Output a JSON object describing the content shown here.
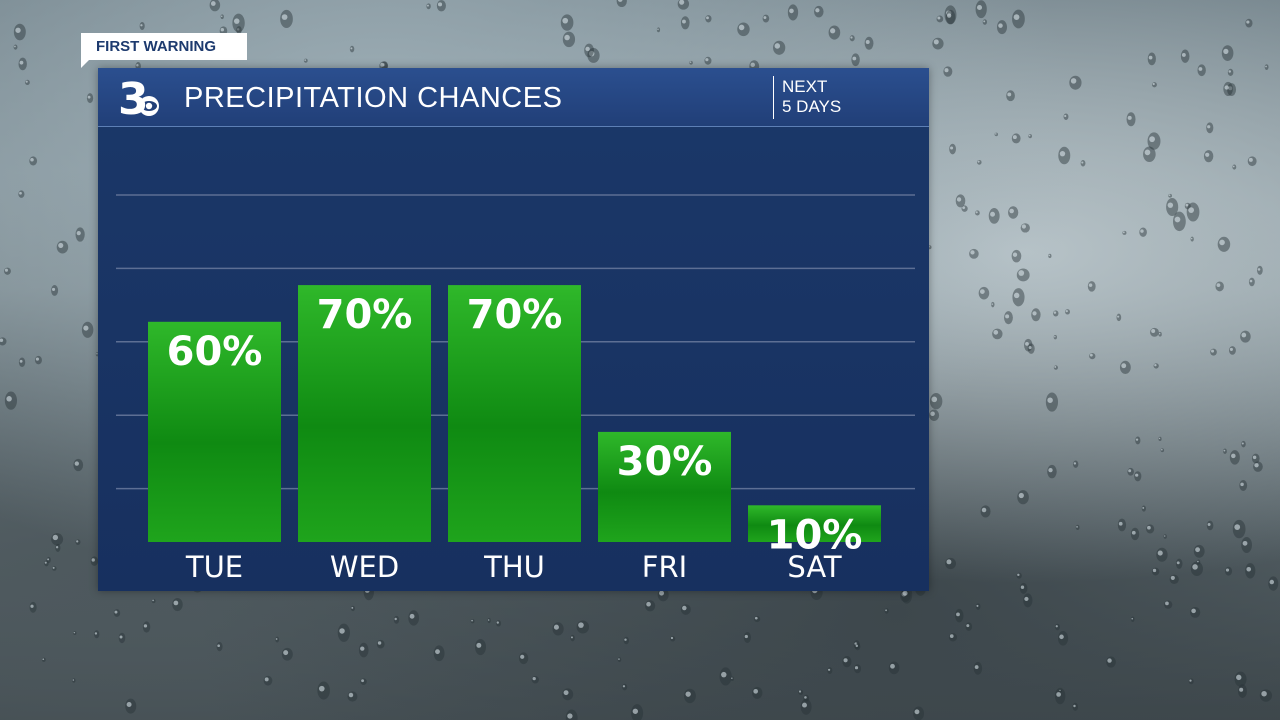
{
  "tag": {
    "label": "FIRST WARNING"
  },
  "header": {
    "logo_text": "3",
    "title": "PRECIPITATION CHANCES",
    "period_line1": "NEXT",
    "period_line2": "5 DAYS"
  },
  "colors": {
    "panel": "#17305f",
    "header": "#2b4f8f",
    "bar_light": "#2fb82a",
    "bar_dark": "#0f8a12",
    "gridline": "#5d6f94"
  },
  "chart_data": {
    "type": "bar",
    "title": "PRECIPITATION CHANCES",
    "categories": [
      "TUE",
      "WED",
      "THU",
      "FRI",
      "SAT"
    ],
    "values": [
      60,
      70,
      70,
      30,
      10
    ],
    "value_labels": [
      "60%",
      "70%",
      "70%",
      "30%",
      "10%"
    ],
    "ylim": [
      0,
      100
    ],
    "grid": true,
    "legend": "none"
  }
}
